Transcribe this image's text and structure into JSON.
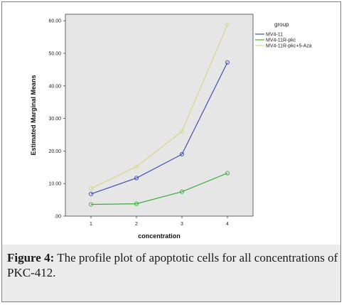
{
  "chart_data": {
    "type": "line",
    "xlabel": "concentration",
    "ylabel": "Estimated Marginal Means",
    "categories": [
      "1",
      "2",
      "3",
      "4"
    ],
    "ylim": [
      0,
      62
    ],
    "yticks": [
      0,
      10,
      20,
      30,
      40,
      50,
      60
    ],
    "ytick_labels": [
      ".00",
      "10.00",
      "20.00",
      "30.00",
      "40.00",
      "50.00",
      "60.00"
    ],
    "legend_title": "group",
    "legend_position": "right",
    "grid": false,
    "plot_background": "#e6e6e6",
    "series": [
      {
        "name": "MV4-11",
        "color": "#3f4fae",
        "values": [
          6.8,
          11.7,
          19.0,
          47.2
        ]
      },
      {
        "name": "MV4-11R-pkc",
        "color": "#3dad3d",
        "values": [
          3.6,
          3.8,
          7.5,
          13.2
        ]
      },
      {
        "name": "MV4-11R-pkc+5-Aza",
        "color": "#d6d68a",
        "values": [
          8.5,
          15.2,
          26.0,
          58.7
        ]
      }
    ]
  },
  "caption": {
    "label": "Figure 4:",
    "text": " The profile plot of apoptotic cells for all concentrations of PKC-412."
  }
}
